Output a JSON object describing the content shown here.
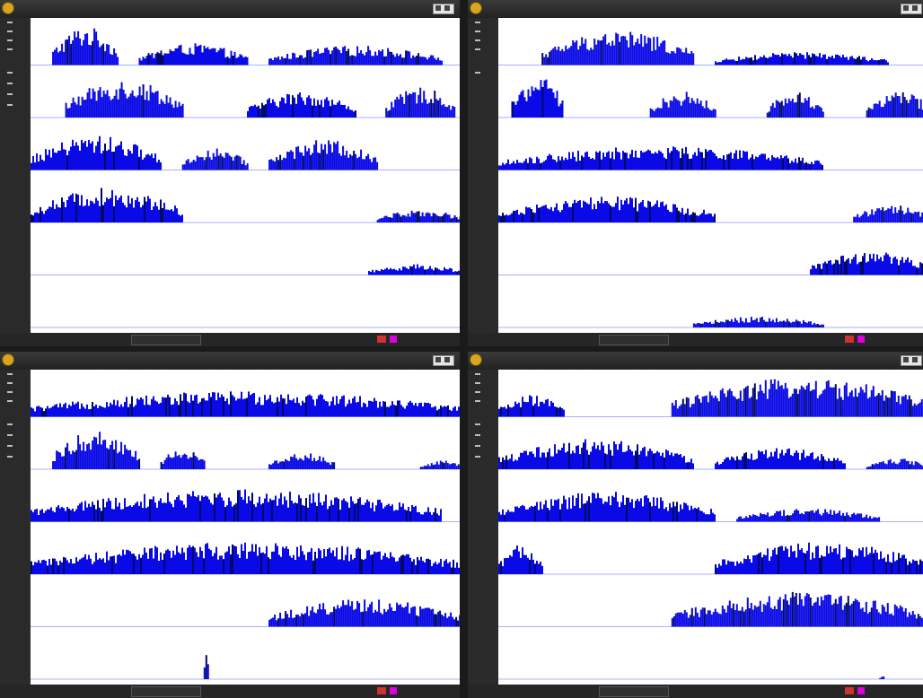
{
  "windows": [
    {
      "id": "w1",
      "title": "",
      "menu": "",
      "status_left": "",
      "status_mid": "",
      "status_right": "",
      "tracks": 6
    },
    {
      "id": "w2",
      "title": "",
      "menu": "",
      "status_left": "",
      "status_mid": "",
      "status_right": "",
      "tracks": 6
    },
    {
      "id": "w3",
      "title": "",
      "menu": "",
      "status_left": "",
      "status_mid": "",
      "status_right": "",
      "tracks": 6
    },
    {
      "id": "w4",
      "title": "",
      "menu": "",
      "status_left": "",
      "status_mid": "",
      "status_right": "",
      "tracks": 6
    }
  ],
  "colors": {
    "bar": "#0a0ae6",
    "bar_dark": "#000a66",
    "baseline": "#aab0ff",
    "track_bg": "#ffffff",
    "chrome": "#2b2b2b"
  }
}
